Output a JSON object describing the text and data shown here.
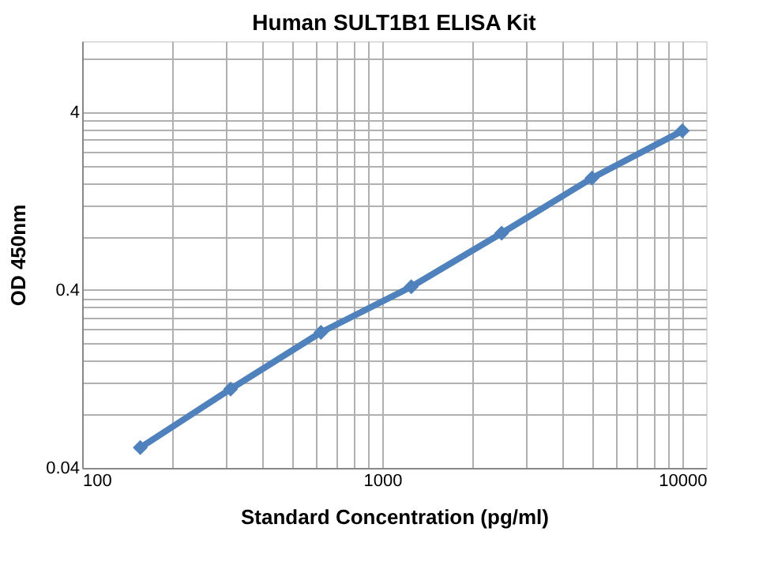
{
  "chart_data": {
    "type": "line",
    "title": "Human SULT1B1 ELISA Kit",
    "xlabel": "Standard Concentration (pg/ml)",
    "ylabel": "OD 450nm",
    "x": [
      156.25,
      312.5,
      625,
      1250,
      2500,
      5000,
      10000
    ],
    "series": [
      {
        "color": "#4f81bd",
        "values": [
          0.052,
          0.111,
          0.231,
          0.417,
          0.833,
          1.7,
          3.13
        ]
      }
    ],
    "log": "xy",
    "xlim": [
      100,
      12000
    ],
    "ylim": [
      0.04,
      10
    ],
    "xticks": [
      100,
      {
        "value": 200,
        "label": null
      },
      {
        "value": 300,
        "label": null
      },
      {
        "value": 400,
        "label": null
      },
      {
        "value": 500,
        "label": null
      },
      {
        "value": 600,
        "label": null
      },
      {
        "value": 700,
        "label": null
      },
      {
        "value": 800,
        "label": null
      },
      {
        "value": 900,
        "label": null
      },
      1000,
      {
        "value": 2000,
        "label": null
      },
      {
        "value": 3000,
        "label": null
      },
      {
        "value": 4000,
        "label": null
      },
      {
        "value": 5000,
        "label": null
      },
      {
        "value": 6000,
        "label": null
      },
      {
        "value": 7000,
        "label": null
      },
      {
        "value": 8000,
        "label": null
      },
      {
        "value": 9000,
        "label": null
      },
      10000
    ],
    "yticks": [
      0.04,
      {
        "value": 0.08,
        "label": null
      },
      {
        "value": 0.12,
        "label": null
      },
      {
        "value": 0.16,
        "label": null
      },
      {
        "value": 0.2,
        "label": null
      },
      {
        "value": 0.24,
        "label": null
      },
      {
        "value": 0.28,
        "label": null
      },
      {
        "value": 0.32,
        "label": null
      },
      {
        "value": 0.36,
        "label": null
      },
      0.4,
      {
        "value": 0.8,
        "label": null
      },
      {
        "value": 1.2,
        "label": null
      },
      {
        "value": 1.6,
        "label": null
      },
      {
        "value": 2.0,
        "label": null
      },
      {
        "value": 2.4,
        "label": null
      },
      {
        "value": 2.8,
        "label": null
      },
      {
        "value": 3.2,
        "label": null
      },
      {
        "value": 3.6,
        "label": null
      },
      4,
      {
        "value": 8,
        "label": null
      }
    ],
    "grid": true,
    "marker": "diamond",
    "line_style": "solid"
  }
}
